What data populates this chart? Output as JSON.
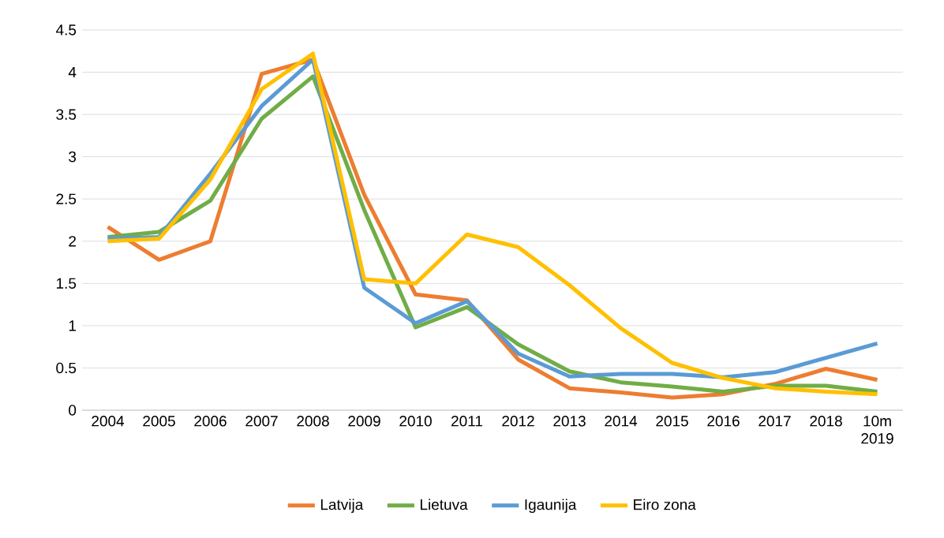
{
  "chart_data": {
    "type": "line",
    "categories": [
      "2004",
      "2005",
      "2006",
      "2007",
      "2008",
      "2009",
      "2010",
      "2011",
      "2012",
      "2013",
      "2014",
      "2015",
      "2016",
      "2017",
      "2018",
      "10m 2019"
    ],
    "series": [
      {
        "name": "Latvija",
        "color": "#ed7d31",
        "values": [
          2.17,
          1.78,
          2.0,
          3.98,
          4.15,
          2.55,
          1.37,
          1.3,
          0.6,
          0.26,
          0.21,
          0.15,
          0.19,
          0.31,
          0.49,
          0.36
        ]
      },
      {
        "name": "Lietuva",
        "color": "#70ad47",
        "values": [
          2.05,
          2.11,
          2.48,
          3.45,
          3.95,
          2.37,
          0.98,
          1.22,
          0.78,
          0.46,
          0.33,
          0.28,
          0.22,
          0.29,
          0.29,
          0.22
        ]
      },
      {
        "name": "Igaunija",
        "color": "#5b9bd5",
        "values": [
          2.03,
          2.05,
          2.8,
          3.6,
          4.15,
          1.45,
          1.03,
          1.29,
          0.67,
          0.4,
          0.43,
          0.43,
          0.39,
          0.45,
          0.62,
          0.79
        ]
      },
      {
        "name": "Eiro zona",
        "color": "#ffc000",
        "values": [
          2.0,
          2.03,
          2.73,
          3.8,
          4.22,
          1.55,
          1.5,
          2.08,
          1.93,
          1.48,
          0.97,
          0.56,
          0.38,
          0.26,
          0.22,
          0.19
        ]
      }
    ],
    "ylim": [
      0,
      4.5
    ],
    "yticks": [
      0,
      0.5,
      1,
      1.5,
      2,
      2.5,
      3,
      3.5,
      4,
      4.5
    ],
    "grid": "y",
    "legend": "bottom",
    "marker": "none",
    "line_style": "solid"
  }
}
